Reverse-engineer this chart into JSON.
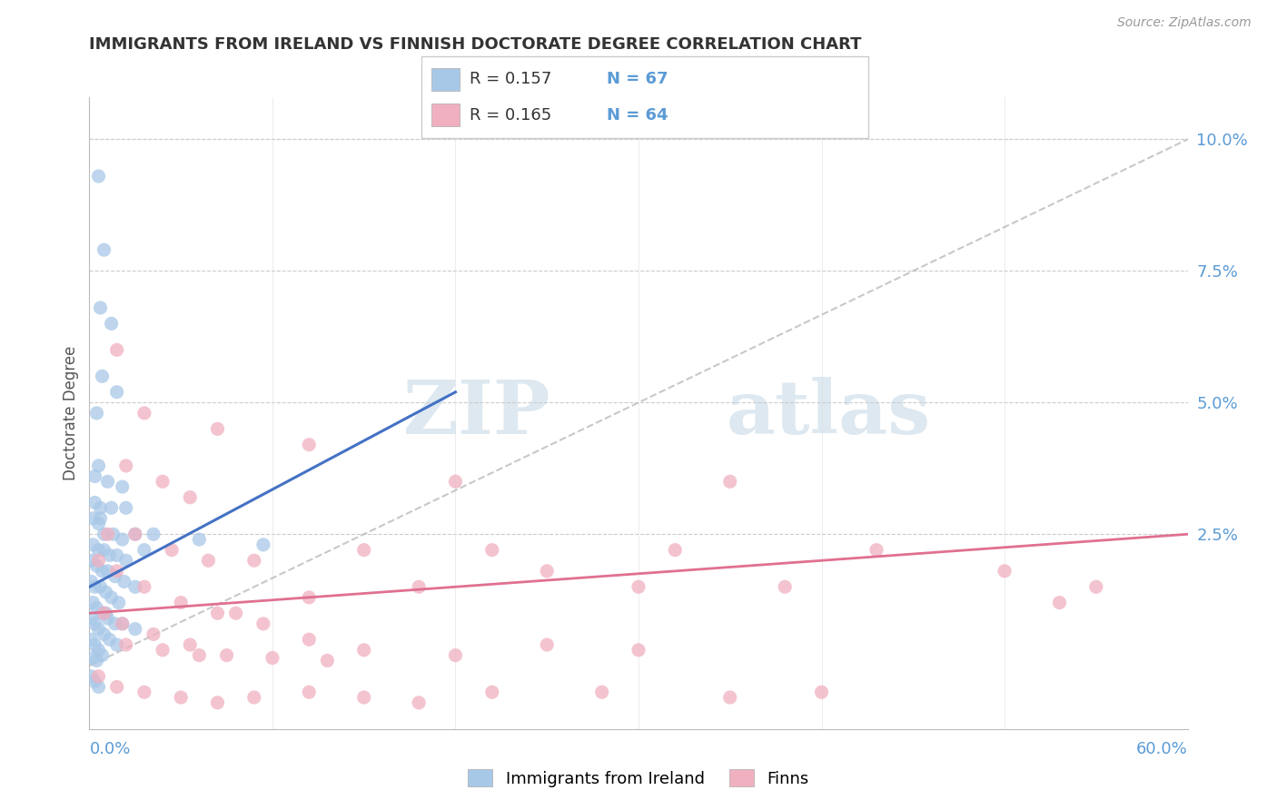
{
  "title": "IMMIGRANTS FROM IRELAND VS FINNISH DOCTORATE DEGREE CORRELATION CHART",
  "source": "Source: ZipAtlas.com",
  "ylabel": "Doctorate Degree",
  "right_yticks": [
    "2.5%",
    "5.0%",
    "7.5%",
    "10.0%"
  ],
  "right_ytick_vals": [
    2.5,
    5.0,
    7.5,
    10.0
  ],
  "xmin": 0.0,
  "xmax": 60.0,
  "ymin": -1.2,
  "ymax": 10.8,
  "blue_color": "#A8C8E8",
  "pink_color": "#F0B0C0",
  "trend_blue_color": "#4472C4",
  "trend_pink_color": "#E07090",
  "trend_gray_color": "#BBBBBB",
  "watermark_zip": "ZIP",
  "watermark_atlas": "atlas",
  "blue_scatter": [
    [
      0.5,
      9.3
    ],
    [
      0.8,
      7.9
    ],
    [
      0.6,
      6.8
    ],
    [
      1.2,
      6.5
    ],
    [
      0.7,
      5.5
    ],
    [
      1.5,
      5.2
    ],
    [
      0.4,
      4.8
    ],
    [
      0.5,
      3.8
    ],
    [
      1.0,
      3.5
    ],
    [
      1.8,
      3.4
    ],
    [
      0.3,
      3.1
    ],
    [
      0.6,
      3.0
    ],
    [
      1.2,
      3.0
    ],
    [
      2.0,
      3.0
    ],
    [
      0.2,
      2.8
    ],
    [
      0.5,
      2.7
    ],
    [
      0.8,
      2.5
    ],
    [
      1.3,
      2.5
    ],
    [
      1.8,
      2.4
    ],
    [
      2.5,
      2.5
    ],
    [
      0.2,
      2.3
    ],
    [
      0.5,
      2.2
    ],
    [
      0.8,
      2.2
    ],
    [
      1.1,
      2.1
    ],
    [
      1.5,
      2.1
    ],
    [
      2.0,
      2.0
    ],
    [
      3.0,
      2.2
    ],
    [
      0.15,
      2.0
    ],
    [
      0.4,
      1.9
    ],
    [
      0.7,
      1.8
    ],
    [
      1.0,
      1.8
    ],
    [
      1.4,
      1.7
    ],
    [
      1.9,
      1.6
    ],
    [
      2.5,
      1.5
    ],
    [
      0.1,
      1.6
    ],
    [
      0.3,
      1.5
    ],
    [
      0.6,
      1.5
    ],
    [
      0.9,
      1.4
    ],
    [
      1.2,
      1.3
    ],
    [
      1.6,
      1.2
    ],
    [
      0.2,
      1.2
    ],
    [
      0.4,
      1.1
    ],
    [
      0.7,
      1.0
    ],
    [
      1.0,
      0.9
    ],
    [
      1.4,
      0.8
    ],
    [
      1.8,
      0.8
    ],
    [
      2.5,
      0.7
    ],
    [
      0.1,
      0.9
    ],
    [
      0.3,
      0.8
    ],
    [
      0.5,
      0.7
    ],
    [
      0.8,
      0.6
    ],
    [
      1.1,
      0.5
    ],
    [
      1.5,
      0.4
    ],
    [
      0.1,
      0.5
    ],
    [
      0.3,
      0.4
    ],
    [
      0.5,
      0.3
    ],
    [
      0.7,
      0.2
    ],
    [
      0.2,
      0.15
    ],
    [
      0.4,
      0.1
    ],
    [
      0.1,
      -0.2
    ],
    [
      0.3,
      -0.3
    ],
    [
      0.5,
      -0.4
    ],
    [
      3.5,
      2.5
    ],
    [
      6.0,
      2.4
    ],
    [
      9.5,
      2.3
    ],
    [
      0.3,
      3.6
    ],
    [
      0.6,
      2.8
    ],
    [
      0.9,
      1.0
    ]
  ],
  "pink_scatter": [
    [
      1.5,
      6.0
    ],
    [
      3.0,
      4.8
    ],
    [
      7.0,
      4.5
    ],
    [
      12.0,
      4.2
    ],
    [
      20.0,
      3.5
    ],
    [
      2.0,
      3.8
    ],
    [
      4.0,
      3.5
    ],
    [
      5.5,
      3.2
    ],
    [
      1.0,
      2.5
    ],
    [
      2.5,
      2.5
    ],
    [
      4.5,
      2.2
    ],
    [
      6.5,
      2.0
    ],
    [
      9.0,
      2.0
    ],
    [
      15.0,
      2.2
    ],
    [
      22.0,
      2.2
    ],
    [
      32.0,
      2.2
    ],
    [
      43.0,
      2.2
    ],
    [
      35.0,
      3.5
    ],
    [
      50.0,
      1.8
    ],
    [
      55.0,
      1.5
    ],
    [
      25.0,
      1.8
    ],
    [
      30.0,
      1.5
    ],
    [
      38.0,
      1.5
    ],
    [
      18.0,
      1.5
    ],
    [
      12.0,
      1.3
    ],
    [
      8.0,
      1.0
    ],
    [
      0.5,
      2.0
    ],
    [
      1.5,
      1.8
    ],
    [
      3.0,
      1.5
    ],
    [
      5.0,
      1.2
    ],
    [
      7.0,
      1.0
    ],
    [
      9.5,
      0.8
    ],
    [
      12.0,
      0.5
    ],
    [
      15.0,
      0.3
    ],
    [
      20.0,
      0.2
    ],
    [
      0.8,
      1.0
    ],
    [
      1.8,
      0.8
    ],
    [
      3.5,
      0.6
    ],
    [
      5.5,
      0.4
    ],
    [
      7.5,
      0.2
    ],
    [
      10.0,
      0.15
    ],
    [
      13.0,
      0.1
    ],
    [
      2.0,
      0.4
    ],
    [
      4.0,
      0.3
    ],
    [
      6.0,
      0.2
    ],
    [
      25.0,
      0.4
    ],
    [
      30.0,
      0.3
    ],
    [
      0.5,
      -0.2
    ],
    [
      1.5,
      -0.4
    ],
    [
      3.0,
      -0.5
    ],
    [
      5.0,
      -0.6
    ],
    [
      7.0,
      -0.7
    ],
    [
      9.0,
      -0.6
    ],
    [
      12.0,
      -0.5
    ],
    [
      15.0,
      -0.6
    ],
    [
      18.0,
      -0.7
    ],
    [
      22.0,
      -0.5
    ],
    [
      28.0,
      -0.5
    ],
    [
      35.0,
      -0.6
    ],
    [
      40.0,
      -0.5
    ],
    [
      53.0,
      1.2
    ]
  ],
  "blue_trend_x": [
    0.0,
    20.0
  ],
  "blue_trend_y": [
    1.5,
    5.2
  ],
  "pink_trend_x": [
    0.0,
    60.0
  ],
  "pink_trend_y": [
    1.0,
    2.5
  ],
  "gray_trend_x": [
    0.0,
    60.0
  ],
  "gray_trend_y": [
    0.0,
    10.0
  ]
}
